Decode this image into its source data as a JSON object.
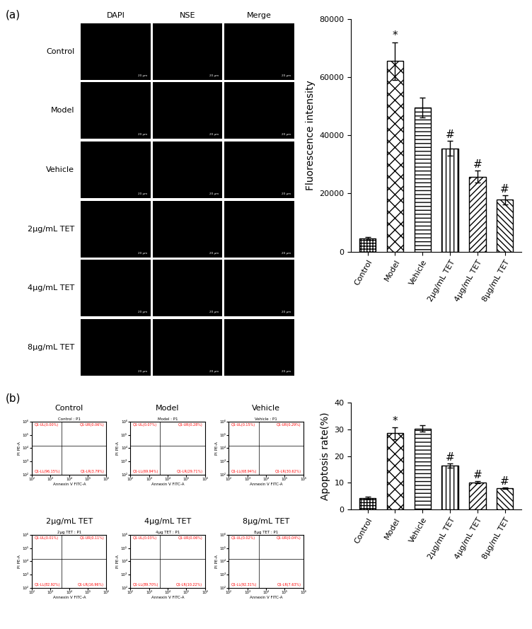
{
  "panel_labels": [
    "(a)",
    "(b)"
  ],
  "microscopy": {
    "columns": [
      "DAPI",
      "NSE",
      "Merge"
    ],
    "rows": [
      "Control",
      "Model",
      "Vehicle",
      "2μg/mL TET",
      "4μg/mL TET",
      "8μg/mL TET"
    ],
    "scale_bar": "20 μm"
  },
  "flow_cytometry": {
    "x_label": "Annexin V FITC-A",
    "y_label": "PI PE-A",
    "log": true,
    "xlim": [
      100,
      1000000
    ],
    "ylim": [
      100,
      1000000
    ],
    "xticks": [
      {
        "value": 100,
        "label": "10²"
      },
      {
        "value": 1000,
        "label": "10³"
      },
      {
        "value": 10000,
        "label": "10⁴"
      },
      {
        "value": 100000,
        "label": "10⁵"
      },
      {
        "value": 1000000,
        "label": "10⁶"
      }
    ],
    "yticks": [
      {
        "value": 100,
        "label": "10²"
      },
      {
        "value": 1000,
        "label": "10³"
      },
      {
        "value": 10000,
        "label": "10⁴"
      },
      {
        "value": 100000,
        "label": "10⁵"
      },
      {
        "value": 1000000,
        "label": "10⁶"
      }
    ],
    "gate": {
      "x": 4000,
      "y": 15000
    },
    "plots": [
      {
        "heading": "Control",
        "title": "Control : P1",
        "quadrants": {
          "UL": "Q1-UL(0.00%)",
          "UR": "Q1-UR(0.06%)",
          "LL": "Q1-LL(96.15%)",
          "LR": "Q1-LR(3.79%)"
        }
      },
      {
        "heading": "Model",
        "title": "Model : P1",
        "quadrants": {
          "UL": "Q1-UL(0.07%)",
          "UR": "Q1-UR(0.28%)",
          "LL": "Q1-LL(69.94%)",
          "LR": "Q1-LR(29.71%)"
        }
      },
      {
        "heading": "Vehicle",
        "title": "Vehicle : P1",
        "quadrants": {
          "UL": "Q1-UL(0.15%)",
          "UR": "Q1-UR(0.29%)",
          "LL": "Q1-LL(68.94%)",
          "LR": "Q1-LR(30.62%)"
        }
      },
      {
        "heading": "2μg/mL TET",
        "title": "2μg TET : P1",
        "quadrants": {
          "UL": "Q1-UL(0.01%)",
          "UR": "Q1-UR(0.11%)",
          "LL": "Q1-LL(82.92%)",
          "LR": "Q1-LR(16.96%)"
        }
      },
      {
        "heading": "4μg/mL TET",
        "title": "4μg TET : P1",
        "quadrants": {
          "UL": "Q1-UL(0.03%)",
          "UR": "Q1-UR(0.06%)",
          "LL": "Q1-LL(89.70%)",
          "LR": "Q1-LR(10.22%)"
        }
      },
      {
        "heading": "8μg/mL TET",
        "title": "8μg TET : P1",
        "quadrants": {
          "UL": "Q1-UL(0.02%)",
          "UR": "Q1-UR(0.04%)",
          "LL": "Q1-LL(92.31%)",
          "LR": "Q1-LR(7.63%)"
        }
      }
    ]
  },
  "chart_data": [
    {
      "type": "bar",
      "y_label": "Fluorescence intensity",
      "color": "#ffffff",
      "categories": [
        "Control",
        "Model",
        "Vehicle",
        "2μg/mL TET",
        "4μg/mL TET",
        "8μg/mL TET"
      ],
      "values": [
        4500,
        65500,
        49500,
        35500,
        25800,
        17800
      ],
      "errors": [
        500,
        6500,
        3500,
        2500,
        2000,
        1500
      ],
      "ylim": [
        0,
        80000
      ],
      "yticks": [
        0,
        20000,
        40000,
        60000,
        80000
      ],
      "annotations": [
        {
          "category": "Model",
          "text": "*"
        },
        {
          "category": "2μg/mL TET",
          "text": "#"
        },
        {
          "category": "4μg/mL TET",
          "text": "#"
        },
        {
          "category": "8μg/mL TET",
          "text": "#"
        }
      ]
    },
    {
      "type": "bar",
      "y_label": "Apoptosis rate(%)",
      "color": "#ffffff",
      "categories": [
        "Control",
        "Model",
        "Vehicle",
        "2μg/mL TET",
        "4μg/mL TET",
        "8μg/mL TET"
      ],
      "values": [
        4.3,
        28.5,
        30.3,
        16.4,
        10.2,
        8.0
      ],
      "errors": [
        0.4,
        2.2,
        1.2,
        0.8,
        0.4,
        0.2
      ],
      "ylim": [
        0,
        40
      ],
      "yticks": [
        0,
        10,
        20,
        30,
        40
      ],
      "annotations": [
        {
          "category": "Model",
          "text": "*"
        },
        {
          "category": "2μg/mL TET",
          "text": "#"
        },
        {
          "category": "4μg/mL TET",
          "text": "#"
        },
        {
          "category": "8μg/mL TET",
          "text": "#"
        }
      ]
    }
  ]
}
